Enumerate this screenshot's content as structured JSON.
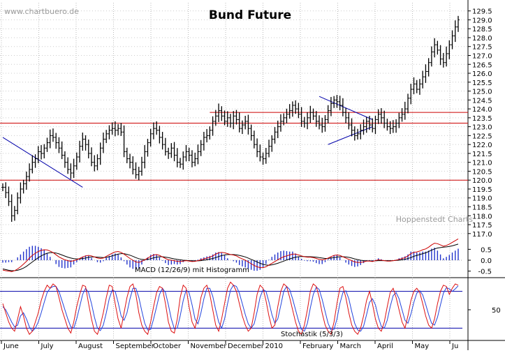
{
  "watermark": "www.chartbuero.de",
  "credit": "Hoppenstedt Charts",
  "chart_data": [
    {
      "panel": "price",
      "type": "ohlc",
      "title": "Bund Future",
      "y_ticks": [
        117.0,
        117.5,
        118.0,
        118.5,
        119.0,
        119.5,
        120.0,
        120.5,
        121.0,
        121.5,
        122.0,
        122.5,
        123.0,
        123.5,
        124.0,
        124.5,
        125.0,
        125.5,
        126.0,
        126.5,
        127.0,
        127.5,
        128.0,
        128.5,
        129.0,
        129.5
      ],
      "y_tick_labels": [
        "117.0",
        "117.5",
        "118.0",
        "118.5",
        "119.0",
        "119.5",
        "120.0",
        "120.5",
        "121.0",
        "121.5",
        "122.0",
        "122.5",
        "123.0",
        "123.5",
        "124.0",
        "124.5",
        "125.0",
        "125.5",
        "126.0",
        "126.5",
        "127.0",
        "127.5",
        "128.0",
        "128.5",
        "129.0",
        "129.5"
      ],
      "ylim": [
        116.6,
        129.8
      ],
      "x_tick_labels": [
        "June",
        "July",
        "August",
        "September",
        "October",
        "November",
        "December",
        "2010",
        "February",
        "March",
        "April",
        "May",
        "Ju"
      ],
      "x_tick_months_index": [
        0,
        1,
        2,
        3,
        4,
        5,
        6,
        7,
        8,
        9,
        10,
        11,
        12
      ],
      "series": [
        {
          "values": [
            119.6,
            119.3,
            118.8,
            118.0,
            118.3,
            119.0,
            119.5,
            119.8,
            120.2,
            120.6,
            121.0,
            121.2,
            121.6,
            121.5,
            121.8,
            122.1,
            122.5,
            122.4,
            122.1,
            121.8,
            121.4,
            121.0,
            120.6,
            120.4,
            120.8,
            121.3,
            121.9,
            122.3,
            122.0,
            121.5,
            121.0,
            120.8,
            121.2,
            121.8,
            122.3,
            122.6,
            122.8,
            122.9,
            122.8,
            122.9,
            122.7,
            121.6,
            121.2,
            121.0,
            120.6,
            120.3,
            120.5,
            121.0,
            121.6,
            122.1,
            122.6,
            122.9,
            122.8,
            122.4,
            122.0,
            121.6,
            121.5,
            121.8,
            121.4,
            121.0,
            120.9,
            121.3,
            121.6,
            121.4,
            121.0,
            121.2,
            121.6,
            122.0,
            122.4,
            122.5,
            122.8,
            123.3,
            123.6,
            123.9,
            123.6,
            123.3,
            123.5,
            123.2,
            123.6,
            123.4,
            122.9,
            123.1,
            123.3,
            122.9,
            122.5,
            122.0,
            121.6,
            121.3,
            121.2,
            121.5,
            121.9,
            122.3,
            122.7,
            123.0,
            123.3,
            123.5,
            123.7,
            123.9,
            124.2,
            124.0,
            123.7,
            123.3,
            123.2,
            123.5,
            123.8,
            123.6,
            123.3,
            123.1,
            123.0,
            123.4,
            123.9,
            124.3,
            124.5,
            124.4,
            124.2,
            123.8,
            123.5,
            123.1,
            122.8,
            122.5,
            122.6,
            122.8,
            123.0,
            123.3,
            123.1,
            122.9,
            123.4,
            123.7,
            123.5,
            123.2,
            123.0,
            122.9,
            123.0,
            123.2,
            123.5,
            123.7,
            124.0,
            124.6,
            125.1,
            125.4,
            125.1,
            125.4,
            125.8,
            126.1,
            126.6,
            127.2,
            127.6,
            127.3,
            126.8,
            126.6,
            127.1,
            127.6,
            128.1,
            128.6,
            129.0
          ]
        }
      ],
      "lines": [
        {
          "kind": "horizontal",
          "value": 123.8,
          "from_index": 70,
          "to_index": "end"
        },
        {
          "kind": "horizontal",
          "value": 123.2,
          "from_index": 0,
          "to_index": "end"
        },
        {
          "kind": "horizontal",
          "value": 120.0,
          "from_index": 0,
          "to_index": "end"
        },
        {
          "kind": "trend",
          "points": [
            [
              0,
              122.4
            ],
            [
              27,
              119.6
            ]
          ]
        },
        {
          "kind": "trend",
          "points": [
            [
              107,
              124.7
            ],
            [
              125,
              123.4
            ]
          ]
        },
        {
          "kind": "trend",
          "points": [
            [
              110,
              122.0
            ],
            [
              125,
              123.0
            ]
          ]
        }
      ]
    },
    {
      "panel": "macd",
      "type": "line+histogram",
      "label": "MACD (12/26/9) mit Histogramm",
      "y_ticks": [
        0.5,
        0.0,
        -0.5
      ],
      "y_tick_labels": [
        "0.5",
        "0.0",
        "-0.5"
      ],
      "ylim": [
        -0.8,
        0.8
      ],
      "series": [
        {
          "values": [
            -0.45,
            -0.48,
            -0.5,
            -0.52,
            -0.48,
            -0.4,
            -0.3,
            -0.18,
            -0.05,
            0.1,
            0.22,
            0.32,
            0.4,
            0.45,
            0.48,
            0.47,
            0.42,
            0.35,
            0.25,
            0.15,
            0.08,
            0.02,
            -0.02,
            -0.05,
            -0.02,
            0.02,
            0.08,
            0.15,
            0.2,
            0.22,
            0.2,
            0.15,
            0.1,
            0.08,
            0.1,
            0.18,
            0.25,
            0.32,
            0.38,
            0.4,
            0.36,
            0.28,
            0.18,
            0.08,
            0.0,
            -0.08,
            -0.1,
            -0.05,
            0.02,
            0.1,
            0.18,
            0.24,
            0.26,
            0.22,
            0.15,
            0.08,
            0.02,
            0.0,
            -0.02,
            -0.05,
            -0.06,
            -0.04,
            -0.02,
            -0.04,
            -0.06,
            -0.05,
            -0.02,
            0.02,
            0.06,
            0.1,
            0.14,
            0.2,
            0.28,
            0.34,
            0.36,
            0.34,
            0.3,
            0.26,
            0.24,
            0.2,
            0.12,
            0.06,
            0.0,
            -0.08,
            -0.16,
            -0.24,
            -0.3,
            -0.34,
            -0.34,
            -0.3,
            -0.22,
            -0.14,
            -0.06,
            0.02,
            0.1,
            0.16,
            0.2,
            0.24,
            0.28,
            0.28,
            0.24,
            0.2,
            0.16,
            0.14,
            0.14,
            0.12,
            0.08,
            0.04,
            0.02,
            0.04,
            0.1,
            0.16,
            0.22,
            0.24,
            0.22,
            0.16,
            0.1,
            0.04,
            -0.02,
            -0.08,
            -0.1,
            -0.1,
            -0.08,
            -0.04,
            -0.04,
            -0.06,
            -0.02,
            0.02,
            0.0,
            -0.02,
            -0.04,
            -0.04,
            -0.02,
            0.0,
            0.04,
            0.08,
            0.12,
            0.2,
            0.3,
            0.36,
            0.38,
            0.42,
            0.48,
            0.52,
            0.6,
            0.7,
            0.78,
            0.76,
            0.7,
            0.64,
            0.68,
            0.74,
            0.82,
            0.9,
            0.98
          ]
        },
        {
          "values": [
            -0.4,
            -0.43,
            -0.46,
            -0.48,
            -0.48,
            -0.46,
            -0.42,
            -0.36,
            -0.28,
            -0.18,
            -0.08,
            0.02,
            0.12,
            0.2,
            0.27,
            0.32,
            0.35,
            0.35,
            0.33,
            0.29,
            0.24,
            0.19,
            0.14,
            0.1,
            0.07,
            0.06,
            0.06,
            0.08,
            0.1,
            0.13,
            0.15,
            0.15,
            0.14,
            0.13,
            0.12,
            0.13,
            0.16,
            0.2,
            0.24,
            0.28,
            0.3,
            0.3,
            0.27,
            0.23,
            0.18,
            0.12,
            0.07,
            0.04,
            0.03,
            0.04,
            0.07,
            0.11,
            0.14,
            0.16,
            0.16,
            0.14,
            0.12,
            0.09,
            0.06,
            0.04,
            0.02,
            0.0,
            -0.01,
            -0.02,
            -0.03,
            -0.03,
            -0.03,
            -0.02,
            0.0,
            0.02,
            0.05,
            0.08,
            0.12,
            0.17,
            0.21,
            0.24,
            0.26,
            0.26,
            0.26,
            0.25,
            0.22,
            0.19,
            0.15,
            0.1,
            0.04,
            -0.02,
            -0.08,
            -0.14,
            -0.19,
            -0.22,
            -0.23,
            -0.21,
            -0.18,
            -0.14,
            -0.09,
            -0.04,
            0.01,
            0.06,
            0.1,
            0.14,
            0.16,
            0.17,
            0.17,
            0.16,
            0.16,
            0.15,
            0.14,
            0.12,
            0.1,
            0.08,
            0.08,
            0.1,
            0.12,
            0.14,
            0.16,
            0.16,
            0.15,
            0.13,
            0.1,
            0.06,
            0.03,
            0.0,
            -0.02,
            -0.03,
            -0.03,
            -0.04,
            -0.03,
            -0.02,
            -0.02,
            -0.02,
            -0.02,
            -0.02,
            -0.02,
            -0.01,
            0.0,
            0.02,
            0.04,
            0.08,
            0.12,
            0.18,
            0.22,
            0.26,
            0.3,
            0.34,
            0.4,
            0.46,
            0.52,
            0.56,
            0.58,
            0.6,
            0.61,
            0.63,
            0.66,
            0.7,
            0.74
          ]
        }
      ]
    },
    {
      "panel": "stochastic",
      "type": "line",
      "label": "Stochastik (5/3/3)",
      "y_ticks": [
        50
      ],
      "y_tick_labels": [
        "50"
      ],
      "ylim": [
        0,
        100
      ],
      "reference_lines": [
        80,
        20
      ],
      "series": [
        {
          "values": [
            60,
            45,
            30,
            20,
            15,
            35,
            55,
            40,
            20,
            10,
            15,
            30,
            45,
            65,
            80,
            90,
            85,
            92,
            88,
            70,
            50,
            35,
            20,
            12,
            30,
            55,
            75,
            90,
            88,
            60,
            35,
            15,
            10,
            25,
            45,
            70,
            90,
            88,
            60,
            35,
            20,
            45,
            70,
            88,
            92,
            75,
            45,
            25,
            15,
            10,
            30,
            55,
            78,
            88,
            85,
            60,
            30,
            15,
            12,
            35,
            70,
            90,
            85,
            55,
            30,
            20,
            40,
            70,
            85,
            90,
            75,
            50,
            25,
            15,
            35,
            60,
            85,
            95,
            90,
            80,
            60,
            40,
            25,
            15,
            20,
            45,
            75,
            90,
            85,
            65,
            40,
            20,
            25,
            55,
            80,
            92,
            88,
            70,
            50,
            30,
            15,
            10,
            25,
            50,
            80,
            92,
            88,
            70,
            45,
            25,
            15,
            10,
            30,
            60,
            85,
            88,
            70,
            45,
            25,
            15,
            10,
            20,
            40,
            65,
            80,
            60,
            35,
            20,
            15,
            30,
            55,
            78,
            85,
            70,
            50,
            30,
            20,
            40,
            65,
            80,
            85,
            78,
            60,
            40,
            25,
            20,
            35,
            60,
            80,
            90,
            88,
            75,
            85,
            92,
            90
          ]
        },
        {
          "values": [
            55,
            50,
            40,
            30,
            22,
            25,
            40,
            45,
            35,
            22,
            15,
            20,
            30,
            45,
            62,
            78,
            85,
            88,
            88,
            80,
            65,
            50,
            35,
            22,
            20,
            35,
            55,
            75,
            85,
            78,
            60,
            38,
            20,
            16,
            25,
            45,
            68,
            82,
            80,
            62,
            40,
            33,
            45,
            68,
            85,
            85,
            70,
            48,
            28,
            17,
            18,
            35,
            55,
            75,
            85,
            78,
            58,
            35,
            19,
            20,
            40,
            65,
            82,
            78,
            58,
            35,
            27,
            45,
            68,
            85,
            85,
            72,
            50,
            30,
            20,
            35,
            60,
            82,
            90,
            88,
            77,
            60,
            42,
            27,
            20,
            27,
            47,
            70,
            83,
            80,
            63,
            42,
            28,
            35,
            57,
            80,
            88,
            83,
            68,
            50,
            32,
            18,
            15,
            28,
            53,
            75,
            87,
            83,
            67,
            47,
            28,
            17,
            18,
            35,
            60,
            78,
            81,
            68,
            47,
            28,
            17,
            15,
            23,
            42,
            62,
            68,
            58,
            38,
            23,
            20,
            33,
            55,
            73,
            78,
            68,
            50,
            33,
            28,
            43,
            62,
            77,
            81,
            74,
            59,
            42,
            28,
            25,
            38,
            58,
            77,
            86,
            84,
            80,
            84,
            89
          ]
        }
      ]
    }
  ]
}
